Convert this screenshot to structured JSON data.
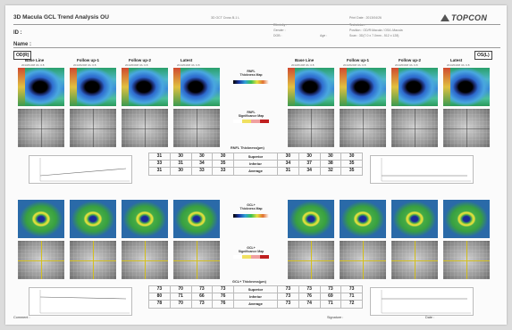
{
  "header": {
    "title": "3D Macula GCL Trend Analysis OU",
    "id_label": "ID :",
    "name_label": "Name :",
    "print_label": "Print Date : 2013/04/26",
    "small_left": "3D OCT Cross B-1 L",
    "small_mid1": "Ethnicity :",
    "small_mid2": "Gender :",
    "small_mid3": "DOB :",
    "small_age": "Age :",
    "small_right1": "Technician :",
    "small_right2": "Position : OD/R:Macula / OS/L:Macula",
    "small_right3": "Scan : 3D(7.0 x 7.0mm - 512 x 128)",
    "logo": "TOPCON"
  },
  "eyes": {
    "right": "OD(R)",
    "left": "OS(L)"
  },
  "columns": {
    "right": [
      {
        "label": "Base Line",
        "date": "2013/01/08  VA: 0.8"
      },
      {
        "label": "Follow up-1",
        "date": "2013/02/08  VA: 0.8"
      },
      {
        "label": "Follow up-2",
        "date": "2013/03/08  VA: 0.8"
      },
      {
        "label": "Latest",
        "date": "2013/04/08  VA: 0.8"
      }
    ],
    "left": [
      {
        "label": "Base Line",
        "date": "2013/01/08  VA: 0.8"
      },
      {
        "label": "Follow up-1",
        "date": "2013/02/08  VA: 0.8"
      },
      {
        "label": "Follow up-2",
        "date": "2013/03/08  VA: 0.8"
      },
      {
        "label": "Latest",
        "date": "2013/04/08  VA: 0.8"
      }
    ]
  },
  "center": {
    "rnfl_thickness_map": "RNFL\nThickness Map",
    "rnfl_significance_map": "RNFL\nSignificance Map",
    "gcl_thickness_map": "GCL+\nThickness Map",
    "gcl_significance_map": "GCL+\nSignificance Map"
  },
  "sections": {
    "rnfl_title": "RNFL Thickness(µm)",
    "gcl_title": "GCL+ Thickness(µm)"
  },
  "rnfl_table": {
    "rows": [
      {
        "label": "Superior",
        "right": [
          "31",
          "30",
          "30",
          "30"
        ],
        "left": [
          "30",
          "30",
          "30",
          "30"
        ]
      },
      {
        "label": "Inferior",
        "right": [
          "33",
          "31",
          "34",
          "35"
        ],
        "left": [
          "34",
          "37",
          "38",
          "35"
        ]
      },
      {
        "label": "Average",
        "right": [
          "31",
          "30",
          "33",
          "33"
        ],
        "left": [
          "31",
          "34",
          "32",
          "35"
        ]
      }
    ]
  },
  "gcl_table": {
    "rows": [
      {
        "label": "Superior",
        "right": [
          "73",
          "70",
          "73",
          "73"
        ],
        "left": [
          "73",
          "73",
          "73",
          "73"
        ]
      },
      {
        "label": "Inferior",
        "right": [
          "80",
          "71",
          "66",
          "76"
        ],
        "left": [
          "73",
          "76",
          "69",
          "71"
        ]
      },
      {
        "label": "Average",
        "right": [
          "78",
          "70",
          "73",
          "76"
        ],
        "left": [
          "73",
          "74",
          "71",
          "72"
        ]
      }
    ]
  },
  "graph_labels": {
    "x_ticks": [
      "2013/1",
      "2013/2",
      "2013/3",
      "2013/4"
    ],
    "x_label": "Month"
  },
  "footer": {
    "comment": "Comment :",
    "signature": "Signature :",
    "date": "Date :"
  }
}
